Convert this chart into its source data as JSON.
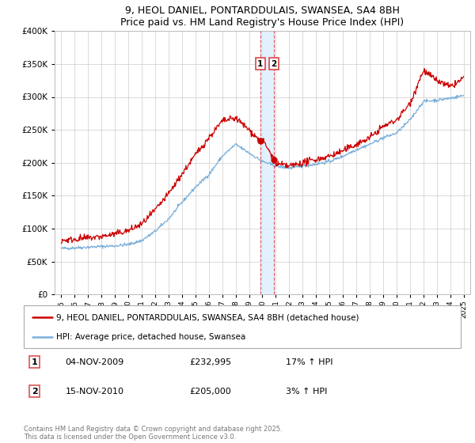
{
  "title": "9, HEOL DANIEL, PONTARDDULAIS, SWANSEA, SA4 8BH",
  "subtitle": "Price paid vs. HM Land Registry's House Price Index (HPI)",
  "red_label": "9, HEOL DANIEL, PONTARDDULAIS, SWANSEA, SA4 8BH (detached house)",
  "blue_label": "HPI: Average price, detached house, Swansea",
  "annotation1_date": "04-NOV-2009",
  "annotation1_price": "£232,995",
  "annotation1_hpi": "17% ↑ HPI",
  "annotation2_date": "15-NOV-2010",
  "annotation2_price": "£205,000",
  "annotation2_hpi": "3% ↑ HPI",
  "footer": "Contains HM Land Registry data © Crown copyright and database right 2025.\nThis data is licensed under the Open Government Licence v3.0.",
  "marker1_x": 2009.84,
  "marker2_x": 2010.87,
  "marker1_red_y": 232995,
  "marker2_red_y": 205000,
  "red_color": "#cc0000",
  "blue_color": "#7aafda",
  "vline_color": "#dd4444",
  "shade_color": "#ddeeff",
  "ylim": [
    0,
    400000
  ],
  "xlim_start": 1994.5,
  "xlim_end": 2025.5,
  "yticks": [
    0,
    50000,
    100000,
    150000,
    200000,
    250000,
    300000,
    350000,
    400000
  ]
}
